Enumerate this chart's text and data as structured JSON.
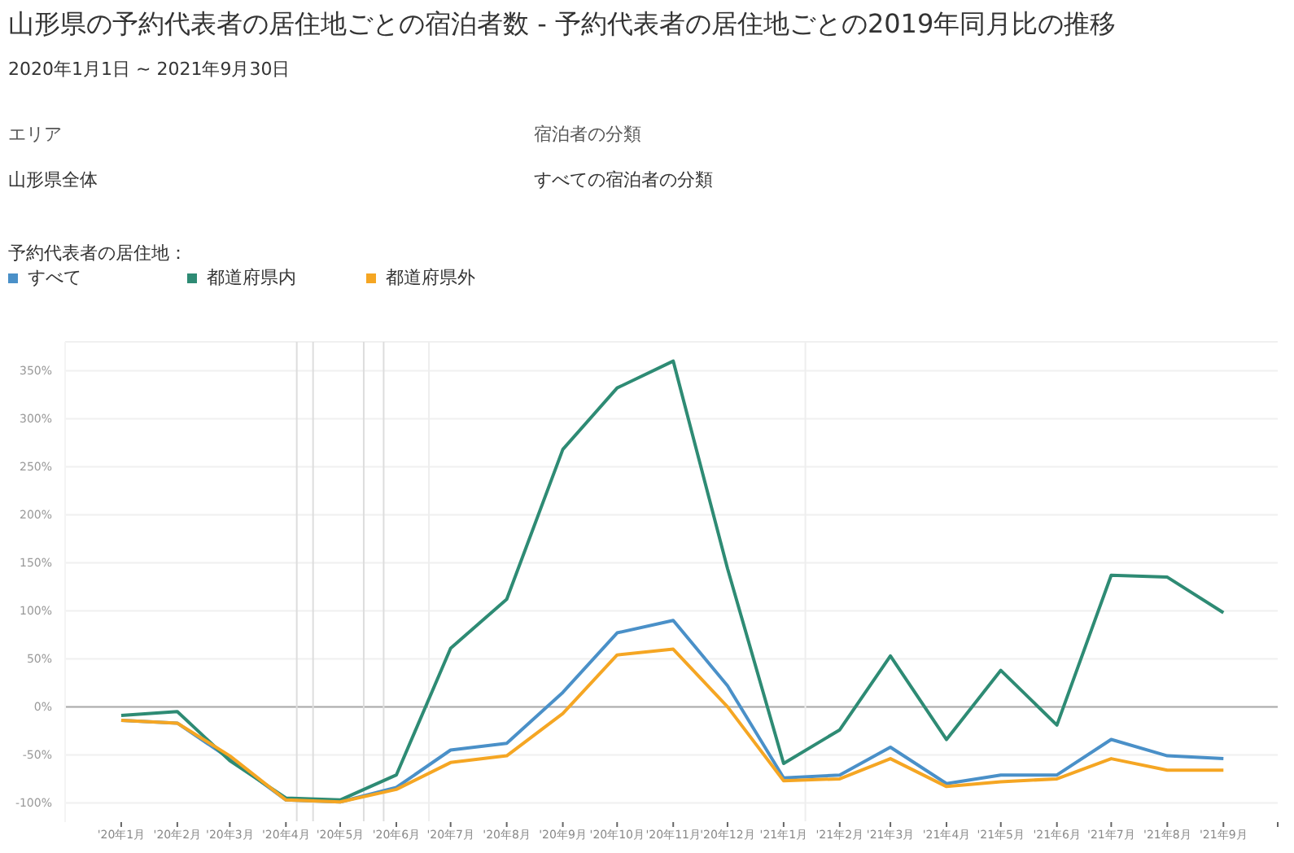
{
  "chart_data": {
    "type": "line",
    "title": "山形県の予約代表者の居住地ごとの宿泊者数 - 予約代表者の居住地ごとの2019年同月比の推移",
    "subtitle": "2020年1月1日 ~ 2021年9月30日",
    "annotations": [
      "エリア",
      "山形県全体",
      "宿泊者の分類",
      "すべての宿泊者の分類"
    ],
    "legend_title": "予約代表者の居住地：",
    "legend": "top left",
    "grid": "y",
    "marker": "none",
    "line_style": "solid",
    "x": [
      "2020-01",
      "2020-02",
      "2020-03",
      "2020-04",
      "2020-05",
      "2020-06",
      "2020-07",
      "2020-08",
      "2020-09",
      "2020-10",
      "2020-11",
      "2020-12",
      "2021-01",
      "2021-02",
      "2021-03",
      "2021-04",
      "2021-05",
      "2021-06",
      "2021-07",
      "2021-08",
      "2021-09"
    ],
    "series": [
      {
        "name": "すべて",
        "color": "#4a90c8",
        "values": [
          -14,
          -17,
          -54,
          -97,
          -99,
          -84,
          -45,
          -38,
          15,
          77,
          90,
          22,
          -74,
          -71,
          -42,
          -80,
          -71,
          -71,
          -34,
          -51,
          -54
        ]
      },
      {
        "name": "都道府県内",
        "color": "#2e8b74",
        "values": [
          -9,
          -5,
          -56,
          -95,
          -97,
          -71,
          61,
          112,
          268,
          332,
          360,
          144,
          -59,
          -24,
          53,
          -34,
          38,
          -19,
          137,
          135,
          98
        ]
      },
      {
        "name": "都道府県外",
        "color": "#f5a623",
        "values": [
          -14,
          -17,
          -51,
          -97,
          -99,
          -86,
          -58,
          -51,
          -7,
          54,
          60,
          0,
          -77,
          -75,
          -54,
          -83,
          -78,
          -75,
          -54,
          -66,
          -66
        ]
      }
    ],
    "xlim": [
      "2019-12",
      "2021-10"
    ],
    "xticks": [
      {
        "value": "2020-01",
        "label": "'20年1月"
      },
      {
        "value": "2020-02",
        "label": "'20年2月"
      },
      {
        "value": "2020-03",
        "label": "'20年3月"
      },
      {
        "value": "2020-04",
        "label": "'20年4月"
      },
      {
        "value": "2020-05",
        "label": "'20年5月"
      },
      {
        "value": "2020-06",
        "label": "'20年6月"
      },
      {
        "value": "2020-07",
        "label": "'20年7月"
      },
      {
        "value": "2020-08",
        "label": "'20年8月"
      },
      {
        "value": "2020-09",
        "label": "'20年9月"
      },
      {
        "value": "2020-10",
        "label": "'20年10月"
      },
      {
        "value": "2020-11",
        "label": "'20年11月"
      },
      {
        "value": "2020-12",
        "label": "'20年12月"
      },
      {
        "value": "2021-01",
        "label": "'21年1月"
      },
      {
        "value": "2021-02",
        "label": "'21年2月"
      },
      {
        "value": "2021-03",
        "label": "'21年3月"
      },
      {
        "value": "2021-04",
        "label": "'21年4月"
      },
      {
        "value": "2021-05",
        "label": "'21年5月"
      },
      {
        "value": "2021-06",
        "label": "'21年6月"
      },
      {
        "value": "2021-07",
        "label": "'21年7月"
      },
      {
        "value": "2021-08",
        "label": "'21年8月"
      },
      {
        "value": "2021-09",
        "label": "'21年9月"
      },
      {
        "value": "2021-10",
        "label": null
      }
    ],
    "ylim": [
      -120,
      380
    ],
    "yticks": [
      {
        "value": -100,
        "label": "-100%"
      },
      {
        "value": -50,
        "label": "-50%"
      },
      {
        "value": 0,
        "label": "0%"
      },
      {
        "value": 50,
        "label": "50%"
      },
      {
        "value": 100,
        "label": "100%"
      },
      {
        "value": 150,
        "label": "150%"
      },
      {
        "value": 200,
        "label": "200%"
      },
      {
        "value": 250,
        "label": "250%"
      },
      {
        "value": 300,
        "label": "300%"
      },
      {
        "value": 350,
        "label": "350%"
      }
    ],
    "ref_lines": [
      {
        "axis": "y",
        "value": 0,
        "color": "#aaaaaa"
      },
      {
        "axis": "x",
        "value": "2020-04-07",
        "color": "#dddddd"
      },
      {
        "axis": "x",
        "value": "2020-04-16",
        "color": "#dddddd"
      },
      {
        "axis": "x",
        "value": "2020-05-14",
        "color": "#dddddd"
      },
      {
        "axis": "x",
        "value": "2020-05-25",
        "color": "#dddddd"
      },
      {
        "axis": "x",
        "value": "2020-06-19",
        "color": "#eeeeee"
      },
      {
        "axis": "x",
        "value": "2021-01-13",
        "color": "#eeeeee"
      }
    ]
  }
}
